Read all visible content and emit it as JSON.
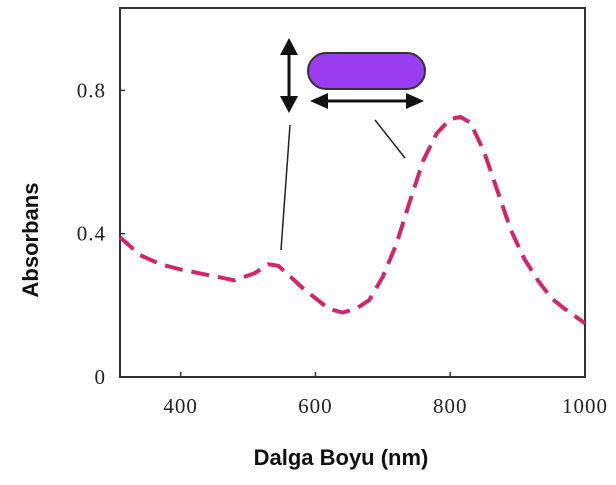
{
  "chart_data": {
    "type": "line",
    "x_label": "Dalga Boyu (nm)",
    "y_label": "Absorbans",
    "xlim": [
      310,
      1000
    ],
    "xticks": [
      400,
      600,
      800,
      1000
    ],
    "ylim": [
      0,
      1.03
    ],
    "yticks": [
      0,
      0.4,
      0.8
    ],
    "series": [
      {
        "color": "#d3256b",
        "x": [
          310,
          340,
          370,
          400,
          440,
          480,
          510,
          530,
          545,
          560,
          580,
          600,
          620,
          640,
          660,
          680,
          700,
          720,
          740,
          760,
          780,
          800,
          815,
          830,
          850,
          870,
          890,
          910,
          930,
          950,
          970,
          1000
        ],
        "values": [
          0.39,
          0.34,
          0.315,
          0.3,
          0.285,
          0.27,
          0.29,
          0.315,
          0.31,
          0.285,
          0.25,
          0.22,
          0.19,
          0.18,
          0.19,
          0.215,
          0.28,
          0.37,
          0.49,
          0.605,
          0.68,
          0.72,
          0.726,
          0.71,
          0.63,
          0.52,
          0.41,
          0.33,
          0.27,
          0.22,
          0.19,
          0.15
        ]
      }
    ]
  }
}
